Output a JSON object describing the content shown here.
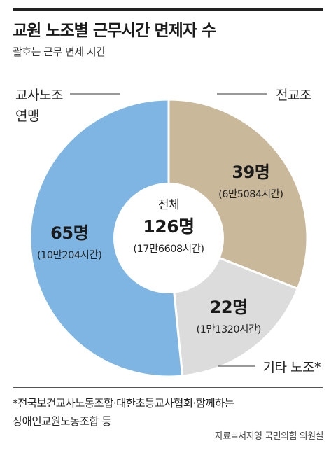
{
  "title": "교원 노조별 근무시간 면제자 수",
  "subtitle": "괄호는 근무 면제 시간",
  "center": {
    "label": "전체",
    "value": "126명",
    "hours": "(17만6608시간)"
  },
  "footnote": [
    "*전국보건교사노동조합·대한초등교사협회·함께하는",
    "장애인교원노동조합 등"
  ],
  "source": "자료=서지영 국민의힘 의원실",
  "chart_data": {
    "type": "pie",
    "donut": true,
    "total": 126,
    "unit": "명",
    "slices": [
      {
        "name": "전교조",
        "label_lines": [
          "전교조"
        ],
        "value": 39,
        "value_label": "39명",
        "hours_label": "(6만5084시간)",
        "color": "#C9B99A"
      },
      {
        "name": "기타 노조*",
        "label_lines": [
          "기타 노조*"
        ],
        "value": 22,
        "value_label": "22명",
        "hours_label": "(1만1320시간)",
        "color": "#DCDCDC"
      },
      {
        "name": "교사노조 연맹",
        "label_lines": [
          "교사노조",
          "연맹"
        ],
        "value": 65,
        "value_label": "65명",
        "hours_label": "(10만204시간)",
        "color": "#7FB5E2"
      }
    ]
  }
}
